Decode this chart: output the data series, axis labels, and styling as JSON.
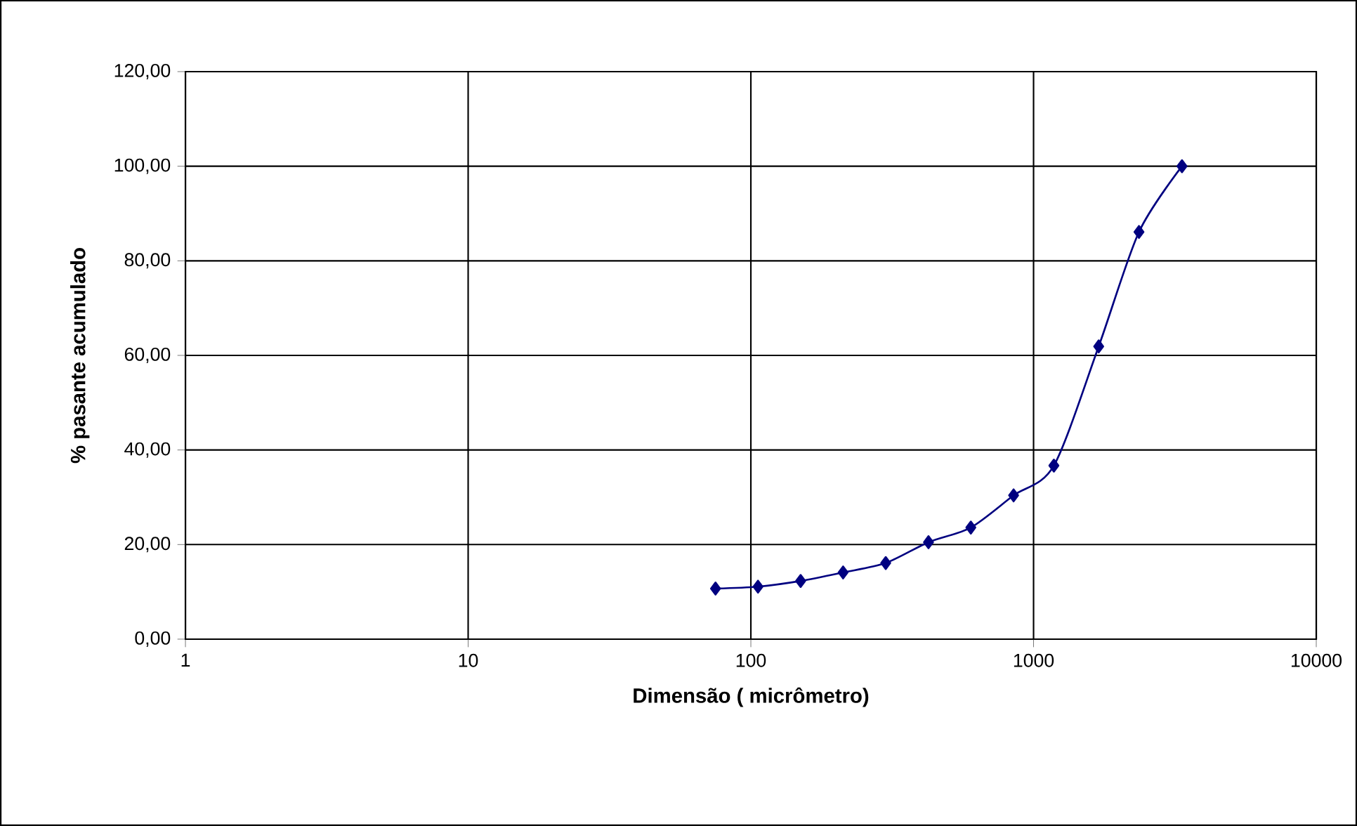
{
  "chart_data": {
    "type": "line",
    "xlabel": "Dimensão ( micrômetro)",
    "ylabel": "% pasante acumulado",
    "x": [
      75,
      106,
      150,
      212,
      300,
      425,
      600,
      850,
      1180,
      1700,
      2360,
      3350
    ],
    "series": [
      {
        "color": "#000080",
        "values": [
          10.7,
          11.1,
          12.3,
          14.1,
          16.1,
          20.5,
          23.6,
          30.4,
          36.7,
          61.9,
          86.1,
          100
        ]
      }
    ],
    "log": "x",
    "grid": true,
    "marker": "diamond",
    "line_style": "solid",
    "xlim": [
      1,
      10000
    ],
    "xticks": [
      1,
      10,
      100,
      1000,
      10000
    ],
    "ylim": [
      0,
      120
    ],
    "yticks": [
      {
        "value": 0,
        "label": "0,00"
      },
      {
        "value": 20,
        "label": "20,00"
      },
      {
        "value": 40,
        "label": "40,00"
      },
      {
        "value": 60,
        "label": "60,00"
      },
      {
        "value": 80,
        "label": "80,00"
      },
      {
        "value": 100,
        "label": "100,00"
      },
      {
        "value": 120,
        "label": "120,00"
      }
    ]
  }
}
